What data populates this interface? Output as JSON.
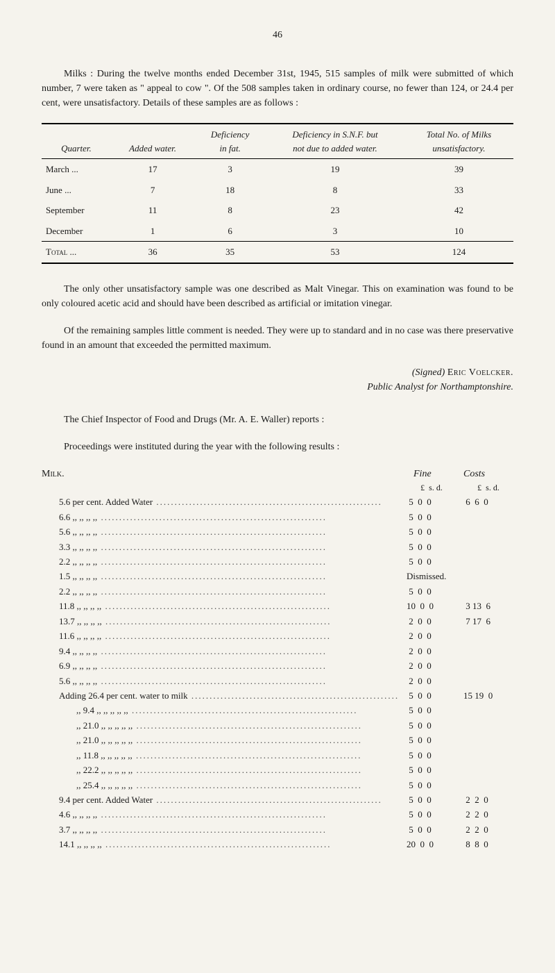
{
  "pageNumber": "46",
  "intro": "Milks : During the twelve months ended December 31st, 1945, 515 samples of milk were submitted of which number, 7 were taken as \" appeal to cow \". Of the 508 samples taken in ordinary course, no fewer than 124, or 24.4 per cent, were unsatisfactory. Details of these samples are as follows :",
  "table": {
    "columns": [
      "Quarter.",
      "Added water.",
      "Deficiency\nin fat.",
      "Deficiency in S.N.F. but\nnot due to added water.",
      "Total No. of Milks\nunsatisfactory."
    ],
    "rows": [
      [
        "March   ...",
        "17",
        "3",
        "19",
        "39"
      ],
      [
        "June      ...",
        "7",
        "18",
        "8",
        "33"
      ],
      [
        "September",
        "11",
        "8",
        "23",
        "42"
      ],
      [
        "December",
        "1",
        "6",
        "3",
        "10"
      ]
    ],
    "totalRow": [
      "Total  ...",
      "36",
      "35",
      "53",
      "124"
    ]
  },
  "afterTable1": "The only other unsatisfactory sample was one described as Malt Vinegar. This on examination was found to be only coloured acetic acid and should have been described as artificial or imitation vinegar.",
  "afterTable2": "Of the remaining samples little comment is needed. They were up to standard and in no case was there preservative found in an amount that exceeded the permitted maximum.",
  "signature": {
    "line1": "(Signed) Eric Voelcker.",
    "line2": "Public Analyst for Northamptonshire."
  },
  "chiefLine": "The Chief Inspector of Food and Drugs (Mr. A. E. Waller) reports :",
  "proceedingsLine": "Proceedings were instituted during the year with the following results :",
  "milkHeading": "Milk.",
  "fineCostsHeaders": {
    "fine": "Fine",
    "costs": "Costs"
  },
  "lsdHeader": {
    "fine": "£  s. d.",
    "costs": "£  s. d."
  },
  "entries": [
    {
      "label": "5.6 per cent. Added Water",
      "fine": " 5  0  0",
      "costs": " 6  6  0"
    },
    {
      "label": "6.6  ,,   ,,        ,,        ,,",
      "fine": " 5  0  0",
      "costs": ""
    },
    {
      "label": "5.6  ,,   ,,        ,,        ,,",
      "fine": " 5  0  0",
      "costs": ""
    },
    {
      "label": "3.3  ,,   ,,        ,,        ,,",
      "fine": " 5  0  0",
      "costs": ""
    },
    {
      "label": "2.2  ,,   ,,        ,,        ,,",
      "fine": " 5  0  0",
      "costs": ""
    },
    {
      "label": "1.5  ,,   ,,        ,,        ,,",
      "fine": "Dismissed.",
      "costs": ""
    },
    {
      "label": "2.2  ,,   ,,        ,,        ,,",
      "fine": " 5  0  0",
      "costs": ""
    },
    {
      "label": "11.8  ,,   ,,        ,,        ,,",
      "fine": "10  0  0",
      "costs": " 3 13  6"
    },
    {
      "label": "13.7  ,,   ,,        ,,        ,,",
      "fine": " 2  0  0",
      "costs": " 7 17  6"
    },
    {
      "label": "11.6  ,,   ,,        ,,        ,,",
      "fine": " 2  0  0",
      "costs": ""
    },
    {
      "label": "9.4  ,,   ,,        ,,        ,,",
      "fine": " 2  0  0",
      "costs": ""
    },
    {
      "label": "6.9  ,,   ,,        ,,        ,,",
      "fine": " 2  0  0",
      "costs": ""
    },
    {
      "label": "5.6  ,,   ,,        ,,        ,,",
      "fine": " 2  0  0",
      "costs": ""
    },
    {
      "label": "Adding 26.4 per cent. water to milk",
      "fine": " 5  0  0",
      "costs": "15 19  0"
    },
    {
      "label": ",,      9.4  ,,   ,,      ,,   ,,   ,,",
      "fine": " 5  0  0",
      "costs": "",
      "indent": true
    },
    {
      "label": ",,     21.0  ,,   ,,      ,,   ,,   ,,",
      "fine": " 5  0  0",
      "costs": "",
      "indent": true
    },
    {
      "label": ",,     21.0  ,,   ,,      ,,   ,,   ,,",
      "fine": " 5  0  0",
      "costs": "",
      "indent": true
    },
    {
      "label": ",,     11.8  ,,   ,,      ,,   ,,   ,,",
      "fine": " 5  0  0",
      "costs": "",
      "indent": true
    },
    {
      "label": ",,     22.2  ,,   ,,      ,,   ,,   ,,",
      "fine": " 5  0  0",
      "costs": "",
      "indent": true
    },
    {
      "label": ",,     25.4  ,,   ,,      ,,   ,,   ,,",
      "fine": " 5  0  0",
      "costs": "",
      "indent": true
    },
    {
      "label": "9.4 per cent. Added Water",
      "fine": " 5  0  0",
      "costs": " 2  2  0"
    },
    {
      "label": "4.6  ,,   ,,        ,,        ,,",
      "fine": " 5  0  0",
      "costs": " 2  2  0"
    },
    {
      "label": "3.7  ,,   ,,        ,,        ,,",
      "fine": " 5  0  0",
      "costs": " 2  2  0"
    },
    {
      "label": "14.1  ,,   ,,        ,,        ,,",
      "fine": "20  0  0",
      "costs": " 8  8  0"
    }
  ]
}
